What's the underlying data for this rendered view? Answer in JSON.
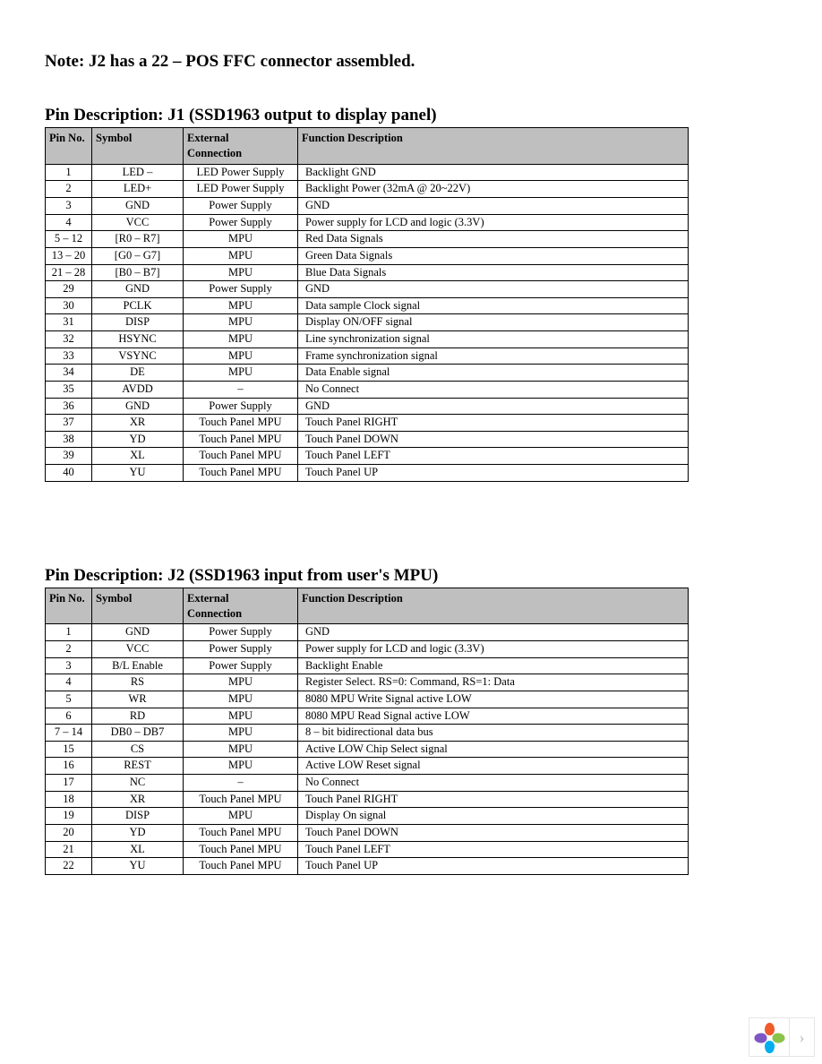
{
  "note_text": "Note: J2 has a 22 – POS FFC connector assembled.",
  "header_bg": "#bfbfbf",
  "border_color": "#000000",
  "columns": {
    "pin": "Pin No.",
    "symbol": "Symbol",
    "external_line1": "External",
    "external_line2": "Connection",
    "func": "Function Description"
  },
  "table1": {
    "title": "Pin Description: J1 (SSD1963 output to display panel)",
    "rows": [
      {
        "pin": "1",
        "symbol": "LED –",
        "ext": "LED Power Supply",
        "func": "Backlight GND"
      },
      {
        "pin": "2",
        "symbol": "LED+",
        "ext": "LED Power Supply",
        "func": "Backlight Power (32mA @ 20~22V)"
      },
      {
        "pin": "3",
        "symbol": "GND",
        "ext": "Power Supply",
        "func": "GND"
      },
      {
        "pin": "4",
        "symbol": "VCC",
        "ext": "Power Supply",
        "func": "Power supply for LCD and logic (3.3V)"
      },
      {
        "pin": "5 – 12",
        "symbol": "[R0 – R7]",
        "ext": "MPU",
        "func": "Red Data Signals"
      },
      {
        "pin": "13 – 20",
        "symbol": "[G0 – G7]",
        "ext": "MPU",
        "func": "Green Data Signals"
      },
      {
        "pin": "21 – 28",
        "symbol": "[B0 – B7]",
        "ext": "MPU",
        "func": "Blue Data Signals"
      },
      {
        "pin": "29",
        "symbol": "GND",
        "ext": "Power Supply",
        "func": "GND"
      },
      {
        "pin": "30",
        "symbol": "PCLK",
        "ext": "MPU",
        "func": "Data sample Clock signal"
      },
      {
        "pin": "31",
        "symbol": "DISP",
        "ext": "MPU",
        "func": "Display ON/OFF signal"
      },
      {
        "pin": "32",
        "symbol": "HSYNC",
        "ext": "MPU",
        "func": "Line synchronization signal"
      },
      {
        "pin": "33",
        "symbol": "VSYNC",
        "ext": "MPU",
        "func": "Frame synchronization signal"
      },
      {
        "pin": "34",
        "symbol": "DE",
        "ext": "MPU",
        "func": "Data Enable signal"
      },
      {
        "pin": "35",
        "symbol": "AVDD",
        "ext": "–",
        "func": "No Connect"
      },
      {
        "pin": "36",
        "symbol": "GND",
        "ext": "Power Supply",
        "func": "GND"
      },
      {
        "pin": "37",
        "symbol": "XR",
        "ext": "Touch Panel MPU",
        "func": "Touch Panel RIGHT"
      },
      {
        "pin": "38",
        "symbol": "YD",
        "ext": "Touch Panel MPU",
        "func": "Touch Panel DOWN"
      },
      {
        "pin": "39",
        "symbol": "XL",
        "ext": "Touch Panel MPU",
        "func": "Touch Panel LEFT"
      },
      {
        "pin": "40",
        "symbol": "YU",
        "ext": "Touch Panel MPU",
        "func": "Touch Panel UP"
      }
    ]
  },
  "table2": {
    "title": "Pin Description: J2 (SSD1963 input from user's MPU)",
    "rows": [
      {
        "pin": "1",
        "symbol": "GND",
        "ext": "Power Supply",
        "func": "GND"
      },
      {
        "pin": "2",
        "symbol": "VCC",
        "ext": "Power Supply",
        "func": "Power supply for LCD and logic (3.3V)"
      },
      {
        "pin": "3",
        "symbol": "B/L Enable",
        "ext": "Power Supply",
        "func": "Backlight Enable"
      },
      {
        "pin": "4",
        "symbol": "RS",
        "ext": "MPU",
        "func": "Register Select. RS=0: Command, RS=1: Data"
      },
      {
        "pin": "5",
        "symbol": "WR",
        "ext": "MPU",
        "func": "8080 MPU Write Signal active LOW"
      },
      {
        "pin": "6",
        "symbol": "RD",
        "ext": "MPU",
        "func": "8080 MPU Read Signal active LOW"
      },
      {
        "pin": "7 – 14",
        "symbol": "DB0 – DB7",
        "ext": "MPU",
        "func": "8 – bit bidirectional data bus"
      },
      {
        "pin": "15",
        "symbol": "CS",
        "ext": "MPU",
        "func": "Active LOW Chip Select signal"
      },
      {
        "pin": "16",
        "symbol": "REST",
        "ext": "MPU",
        "func": "Active LOW Reset signal"
      },
      {
        "pin": "17",
        "symbol": "NC",
        "ext": "–",
        "func": "No Connect"
      },
      {
        "pin": "18",
        "symbol": "XR",
        "ext": "Touch Panel MPU",
        "func": "Touch Panel RIGHT"
      },
      {
        "pin": "19",
        "symbol": "DISP",
        "ext": "MPU",
        "func": "Display On signal"
      },
      {
        "pin": "20",
        "symbol": "YD",
        "ext": "Touch Panel MPU",
        "func": "Touch Panel DOWN"
      },
      {
        "pin": "21",
        "symbol": "XL",
        "ext": "Touch Panel MPU",
        "func": "Touch Panel LEFT"
      },
      {
        "pin": "22",
        "symbol": "YU",
        "ext": "Touch Panel MPU",
        "func": "Touch Panel UP"
      }
    ]
  },
  "footer": {
    "petal_colors": [
      "#f15a29",
      "#8bc34a",
      "#00aeef",
      "#7e57c2"
    ],
    "arrow_glyph": "›"
  }
}
